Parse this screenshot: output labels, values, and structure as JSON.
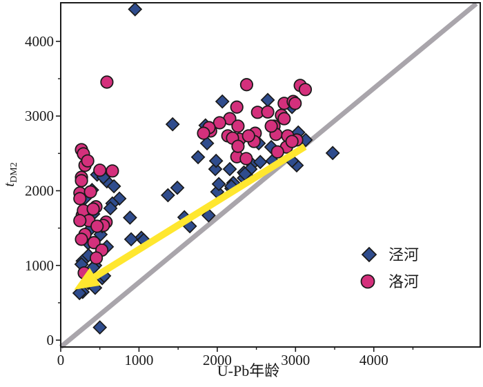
{
  "figure": {
    "background": "#ffffff",
    "frame_color": "#1a1a1a"
  },
  "chart_data": {
    "type": "scatter",
    "title": "",
    "xlabel": "U-Pb年龄",
    "ylabel_main": "t",
    "ylabel_sub": "DM2",
    "xlim": [
      0,
      5360
    ],
    "ylim": [
      -92,
      4517
    ],
    "x_major_ticks": [
      0,
      1000,
      2000,
      3000,
      4000
    ],
    "x_minor_ticks": [
      500,
      1500,
      2500,
      3500,
      4500
    ],
    "y_major_ticks": [
      0,
      1000,
      2000,
      3000,
      4000
    ],
    "y_minor_ticks": [
      500,
      1500,
      2500,
      3500
    ],
    "grid": false,
    "legend_position": "lower-right",
    "one_to_one_line": {
      "from": [
        0,
        -92
      ],
      "to": [
        5310,
        4505
      ],
      "color": "#a9a5ab",
      "width": 7
    },
    "arrow": {
      "from": [
        3120,
        2590
      ],
      "to": [
        170,
        675
      ],
      "color": "#ffe72f",
      "shaft_width": 10,
      "head_length": 36,
      "head_half_width": 15
    },
    "series": [
      {
        "name": "泾河",
        "marker": "diamond",
        "fill": "#2f4c8d",
        "stroke": "#1a1a1a",
        "points": [
          [
            950,
            4430
          ],
          [
            3475,
            2505
          ],
          [
            500,
            170
          ],
          [
            1370,
            1940
          ],
          [
            1030,
            1370
          ],
          [
            885,
            1640
          ],
          [
            900,
            1350
          ],
          [
            1060,
            1340
          ],
          [
            1650,
            1525
          ],
          [
            1580,
            1645
          ],
          [
            1890,
            1670
          ],
          [
            2000,
            1985
          ],
          [
            2180,
            2030
          ],
          [
            2205,
            2105
          ],
          [
            2340,
            2245
          ],
          [
            1490,
            2040
          ],
          [
            1430,
            2890
          ],
          [
            590,
            2125
          ],
          [
            680,
            2060
          ],
          [
            750,
            1895
          ],
          [
            660,
            1830
          ],
          [
            465,
            2215
          ],
          [
            545,
            2180
          ],
          [
            635,
            1765
          ],
          [
            510,
            1415
          ],
          [
            590,
            1250
          ],
          [
            355,
            1460
          ],
          [
            530,
            1525
          ],
          [
            415,
            1690
          ],
          [
            310,
            1900
          ],
          [
            400,
            2010
          ],
          [
            350,
            1300
          ],
          [
            280,
            1060
          ],
          [
            355,
            1135
          ],
          [
            440,
            1000
          ],
          [
            530,
            830
          ],
          [
            265,
            1015
          ],
          [
            415,
            970
          ],
          [
            555,
            860
          ],
          [
            355,
            765
          ],
          [
            280,
            645
          ],
          [
            440,
            700
          ],
          [
            240,
            630
          ],
          [
            325,
            860
          ],
          [
            2065,
            3195
          ],
          [
            2645,
            3215
          ],
          [
            1850,
            2875
          ],
          [
            1870,
            2635
          ],
          [
            2445,
            2355
          ],
          [
            2550,
            2385
          ],
          [
            2690,
            2585
          ],
          [
            2020,
            2090
          ],
          [
            2180,
            2060
          ],
          [
            2340,
            2170
          ],
          [
            2955,
            3120
          ],
          [
            3035,
            2780
          ],
          [
            3130,
            2680
          ],
          [
            3015,
            2340
          ],
          [
            2705,
            2400
          ],
          [
            2530,
            2635
          ],
          [
            2955,
            2400
          ],
          [
            1975,
            2290
          ],
          [
            2160,
            2290
          ],
          [
            2425,
            2290
          ],
          [
            2380,
            2200
          ],
          [
            1985,
            2400
          ],
          [
            1755,
            2450
          ],
          [
            2355,
            2225
          ]
        ]
      },
      {
        "name": "洛河",
        "marker": "circle",
        "fill": "#d4307c",
        "stroke": "#1a1a1a",
        "points": [
          [
            590,
            3455
          ],
          [
            2375,
            3420
          ],
          [
            3060,
            3410
          ],
          [
            3125,
            3355
          ],
          [
            265,
            2550
          ],
          [
            290,
            2495
          ],
          [
            310,
            2340
          ],
          [
            345,
            2400
          ],
          [
            500,
            2275
          ],
          [
            660,
            2265
          ],
          [
            265,
            2180
          ],
          [
            265,
            2135
          ],
          [
            245,
            1970
          ],
          [
            380,
            1985
          ],
          [
            245,
            1895
          ],
          [
            450,
            1785
          ],
          [
            275,
            1670
          ],
          [
            290,
            1735
          ],
          [
            415,
            1755
          ],
          [
            360,
            1600
          ],
          [
            245,
            1600
          ],
          [
            580,
            1580
          ],
          [
            545,
            1535
          ],
          [
            465,
            1525
          ],
          [
            310,
            1415
          ],
          [
            265,
            1350
          ],
          [
            425,
            1305
          ],
          [
            525,
            1205
          ],
          [
            455,
            1100
          ],
          [
            300,
            900
          ],
          [
            2250,
            3120
          ],
          [
            2855,
            3170
          ],
          [
            2970,
            3195
          ],
          [
            2995,
            3170
          ],
          [
            2515,
            3050
          ],
          [
            2645,
            3055
          ],
          [
            2820,
            3010
          ],
          [
            2160,
            2965
          ],
          [
            2030,
            2910
          ],
          [
            2265,
            2865
          ],
          [
            1915,
            2800
          ],
          [
            2135,
            2735
          ],
          [
            2285,
            2690
          ],
          [
            2485,
            2770
          ],
          [
            2470,
            2660
          ],
          [
            2725,
            2865
          ],
          [
            2750,
            2755
          ],
          [
            2900,
            2735
          ],
          [
            3015,
            2680
          ],
          [
            2885,
            2585
          ],
          [
            2250,
            2455
          ],
          [
            2370,
            2430
          ],
          [
            1895,
            2845
          ],
          [
            1825,
            2770
          ],
          [
            2855,
            2965
          ],
          [
            2690,
            2865
          ],
          [
            2955,
            2660
          ],
          [
            2770,
            2520
          ],
          [
            2195,
            2705
          ],
          [
            2265,
            2595
          ],
          [
            2400,
            2735
          ]
        ]
      }
    ]
  },
  "legend": {
    "items": [
      {
        "label": "泾河",
        "marker": "diamond"
      },
      {
        "label": "洛河",
        "marker": "circle"
      }
    ]
  }
}
